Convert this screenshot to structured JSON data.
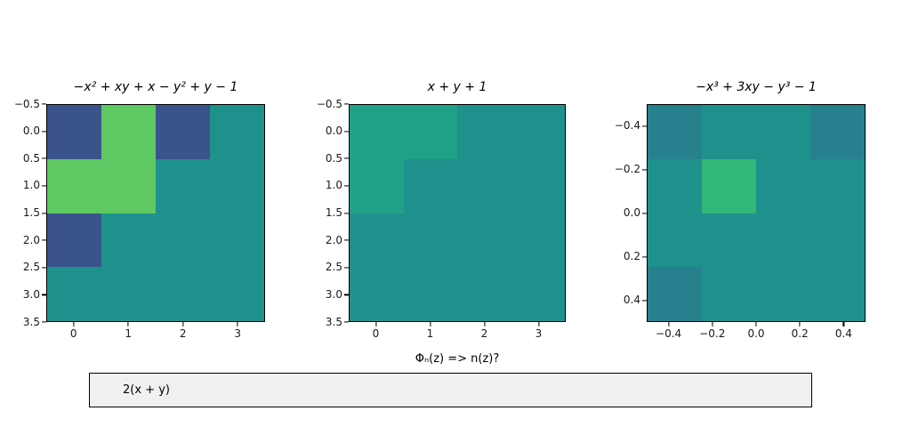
{
  "figure": {
    "background": "#ffffff",
    "prompt_label": "Φₙ(z) => n(z)?",
    "input": {
      "value": "2(x + y)"
    }
  },
  "palette": {
    "base": "#1F918C",
    "dark_blue": "#3A538B",
    "green": "#5EC962",
    "light_teal": "#20A187",
    "dark_teal": "#27808E",
    "mid_green": "#31B778"
  },
  "chart_data": [
    {
      "type": "heatmap",
      "title": "−x² + xy + x − y² + y − 1",
      "x_tick_labels": [
        "0",
        "1",
        "2",
        "3"
      ],
      "x_tick_values": [
        0,
        1,
        2,
        3
      ],
      "x_range": [
        -0.5,
        3.5
      ],
      "y_tick_labels": [
        "−0.5",
        "0.0",
        "0.5",
        "1.0",
        "1.5",
        "2.0",
        "2.5",
        "3.0",
        "3.5"
      ],
      "y_tick_values": [
        -0.5,
        0.0,
        0.5,
        1.0,
        1.5,
        2.0,
        2.5,
        3.0,
        3.5
      ],
      "y_range": [
        -0.5,
        3.5
      ],
      "grid": [
        [
          "dark_blue",
          "green",
          "dark_blue",
          "base"
        ],
        [
          "green",
          "green",
          "base",
          "base"
        ],
        [
          "dark_blue",
          "base",
          "base",
          "base"
        ],
        [
          "base",
          "base",
          "base",
          "base"
        ]
      ]
    },
    {
      "type": "heatmap",
      "title": "x + y + 1",
      "x_tick_labels": [
        "0",
        "1",
        "2",
        "3"
      ],
      "x_tick_values": [
        0,
        1,
        2,
        3
      ],
      "x_range": [
        -0.5,
        3.5
      ],
      "y_tick_labels": [
        "−0.5",
        "0.0",
        "0.5",
        "1.0",
        "1.5",
        "2.0",
        "2.5",
        "3.0",
        "3.5"
      ],
      "y_tick_values": [
        -0.5,
        0.0,
        0.5,
        1.0,
        1.5,
        2.0,
        2.5,
        3.0,
        3.5
      ],
      "y_range": [
        -0.5,
        3.5
      ],
      "grid": [
        [
          "light_teal",
          "light_teal",
          "base",
          "base"
        ],
        [
          "light_teal",
          "base",
          "base",
          "base"
        ],
        [
          "base",
          "base",
          "base",
          "base"
        ],
        [
          "base",
          "base",
          "base",
          "base"
        ]
      ]
    },
    {
      "type": "heatmap",
      "title": "−x³ + 3xy − y³ − 1",
      "x_tick_labels": [
        "−0.4",
        "−0.2",
        "0.0",
        "0.2",
        "0.4"
      ],
      "x_tick_values": [
        -0.4,
        -0.2,
        0.0,
        0.2,
        0.4
      ],
      "x_range": [
        -0.5,
        0.5
      ],
      "y_tick_labels": [
        "−0.4",
        "−0.2",
        "0.0",
        "0.2",
        "0.4"
      ],
      "y_tick_values": [
        -0.4,
        -0.2,
        0.0,
        0.2,
        0.4
      ],
      "y_range": [
        -0.5,
        0.5
      ],
      "grid": [
        [
          "dark_teal",
          "base",
          "base",
          "dark_teal"
        ],
        [
          "base",
          "mid_green",
          "base",
          "base"
        ],
        [
          "base",
          "base",
          "base",
          "base"
        ],
        [
          "dark_teal",
          "base",
          "base",
          "base"
        ]
      ]
    }
  ]
}
